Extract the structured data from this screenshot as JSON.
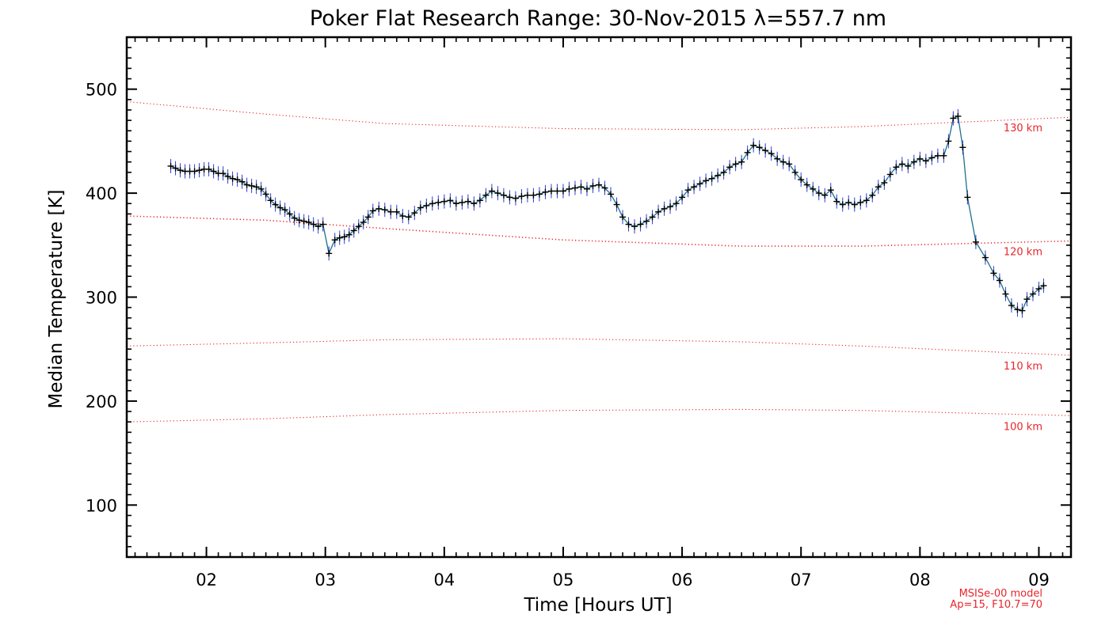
{
  "chart_data": {
    "type": "line",
    "title": "Poker Flat Research Range: 30-Nov-2015 λ=557.7 nm",
    "xlabel": "Time [Hours UT]",
    "ylabel": "Median Temperature [K]",
    "xlim": [
      1.33,
      9.27
    ],
    "ylim": [
      50,
      550
    ],
    "x_ticks": [
      2,
      3,
      4,
      5,
      6,
      7,
      8,
      9
    ],
    "x_tick_labels": [
      "02",
      "03",
      "04",
      "05",
      "06",
      "07",
      "08",
      "09"
    ],
    "y_ticks": [
      100,
      200,
      300,
      400,
      500
    ],
    "y_tick_labels": [
      "100",
      "200",
      "300",
      "400",
      "500"
    ],
    "grid": false,
    "series": [
      {
        "color": "#1f6f8b",
        "marker": "+",
        "points": [
          [
            1.7,
            426
          ],
          [
            1.74,
            424
          ],
          [
            1.78,
            422
          ],
          [
            1.82,
            421
          ],
          [
            1.86,
            421
          ],
          [
            1.9,
            421
          ],
          [
            1.94,
            422
          ],
          [
            1.98,
            423
          ],
          [
            2.02,
            423
          ],
          [
            2.06,
            421
          ],
          [
            2.1,
            419
          ],
          [
            2.14,
            419
          ],
          [
            2.18,
            416
          ],
          [
            2.22,
            414
          ],
          [
            2.26,
            413
          ],
          [
            2.3,
            411
          ],
          [
            2.34,
            408
          ],
          [
            2.38,
            407
          ],
          [
            2.42,
            406
          ],
          [
            2.46,
            404
          ],
          [
            2.5,
            399
          ],
          [
            2.54,
            393
          ],
          [
            2.58,
            389
          ],
          [
            2.62,
            386
          ],
          [
            2.66,
            384
          ],
          [
            2.7,
            380
          ],
          [
            2.74,
            376
          ],
          [
            2.78,
            374
          ],
          [
            2.82,
            373
          ],
          [
            2.86,
            372
          ],
          [
            2.9,
            370
          ],
          [
            2.94,
            368
          ],
          [
            2.98,
            370
          ],
          [
            3.03,
            342
          ],
          [
            3.08,
            355
          ],
          [
            3.12,
            357
          ],
          [
            3.16,
            358
          ],
          [
            3.2,
            360
          ],
          [
            3.24,
            364
          ],
          [
            3.28,
            368
          ],
          [
            3.32,
            372
          ],
          [
            3.36,
            377
          ],
          [
            3.4,
            383
          ],
          [
            3.45,
            385
          ],
          [
            3.5,
            384
          ],
          [
            3.55,
            382
          ],
          [
            3.6,
            382
          ],
          [
            3.65,
            378
          ],
          [
            3.7,
            377
          ],
          [
            3.75,
            381
          ],
          [
            3.8,
            386
          ],
          [
            3.85,
            388
          ],
          [
            3.9,
            390
          ],
          [
            3.95,
            391
          ],
          [
            4.0,
            392
          ],
          [
            4.05,
            393
          ],
          [
            4.1,
            390
          ],
          [
            4.15,
            391
          ],
          [
            4.2,
            392
          ],
          [
            4.25,
            390
          ],
          [
            4.3,
            393
          ],
          [
            4.35,
            398
          ],
          [
            4.4,
            402
          ],
          [
            4.45,
            400
          ],
          [
            4.5,
            398
          ],
          [
            4.55,
            396
          ],
          [
            4.6,
            395
          ],
          [
            4.65,
            397
          ],
          [
            4.7,
            398
          ],
          [
            4.75,
            398
          ],
          [
            4.8,
            399
          ],
          [
            4.85,
            401
          ],
          [
            4.9,
            402
          ],
          [
            4.95,
            402
          ],
          [
            5.0,
            402
          ],
          [
            5.05,
            404
          ],
          [
            5.1,
            405
          ],
          [
            5.15,
            406
          ],
          [
            5.2,
            404
          ],
          [
            5.25,
            407
          ],
          [
            5.3,
            408
          ],
          [
            5.35,
            405
          ],
          [
            5.4,
            399
          ],
          [
            5.45,
            389
          ],
          [
            5.5,
            377
          ],
          [
            5.55,
            370
          ],
          [
            5.6,
            368
          ],
          [
            5.65,
            370
          ],
          [
            5.7,
            373
          ],
          [
            5.75,
            377
          ],
          [
            5.8,
            382
          ],
          [
            5.85,
            385
          ],
          [
            5.9,
            387
          ],
          [
            5.95,
            390
          ],
          [
            6.0,
            396
          ],
          [
            6.05,
            403
          ],
          [
            6.1,
            406
          ],
          [
            6.15,
            409
          ],
          [
            6.2,
            412
          ],
          [
            6.25,
            414
          ],
          [
            6.3,
            417
          ],
          [
            6.35,
            420
          ],
          [
            6.4,
            425
          ],
          [
            6.45,
            428
          ],
          [
            6.5,
            430
          ],
          [
            6.55,
            439
          ],
          [
            6.6,
            446
          ],
          [
            6.65,
            444
          ],
          [
            6.7,
            441
          ],
          [
            6.75,
            438
          ],
          [
            6.8,
            433
          ],
          [
            6.85,
            430
          ],
          [
            6.9,
            428
          ],
          [
            6.95,
            420
          ],
          [
            7.0,
            413
          ],
          [
            7.05,
            408
          ],
          [
            7.1,
            404
          ],
          [
            7.15,
            400
          ],
          [
            7.2,
            398
          ],
          [
            7.25,
            403
          ],
          [
            7.3,
            392
          ],
          [
            7.35,
            389
          ],
          [
            7.4,
            391
          ],
          [
            7.45,
            389
          ],
          [
            7.5,
            391
          ],
          [
            7.55,
            393
          ],
          [
            7.6,
            398
          ],
          [
            7.65,
            406
          ],
          [
            7.7,
            410
          ],
          [
            7.75,
            418
          ],
          [
            7.8,
            425
          ],
          [
            7.85,
            428
          ],
          [
            7.9,
            426
          ],
          [
            7.95,
            430
          ],
          [
            8.0,
            433
          ],
          [
            8.05,
            431
          ],
          [
            8.1,
            434
          ],
          [
            8.15,
            436
          ],
          [
            8.2,
            436
          ],
          [
            8.24,
            450
          ],
          [
            8.28,
            472
          ],
          [
            8.32,
            474
          ],
          [
            8.36,
            444
          ],
          [
            8.4,
            396
          ],
          [
            8.47,
            353
          ],
          [
            8.55,
            338
          ],
          [
            8.62,
            323
          ],
          [
            8.67,
            316
          ],
          [
            8.72,
            303
          ],
          [
            8.77,
            292
          ],
          [
            8.82,
            288
          ],
          [
            8.86,
            287
          ],
          [
            8.9,
            298
          ],
          [
            8.95,
            303
          ],
          [
            9.0,
            308
          ],
          [
            9.04,
            311
          ]
        ]
      }
    ],
    "model_lines": [
      {
        "label": "130 km",
        "color": "#e8252b",
        "points": [
          [
            1.33,
            488
          ],
          [
            2.5,
            476
          ],
          [
            3.5,
            467
          ],
          [
            5.0,
            462
          ],
          [
            6.5,
            461
          ],
          [
            7.5,
            464
          ],
          [
            9.27,
            473
          ]
        ]
      },
      {
        "label": "120 km",
        "color": "#e8252b",
        "points": [
          [
            1.33,
            378
          ],
          [
            2.5,
            374
          ],
          [
            3.5,
            366
          ],
          [
            5.0,
            355
          ],
          [
            6.5,
            349
          ],
          [
            7.5,
            349
          ],
          [
            9.27,
            354
          ]
        ]
      },
      {
        "label": "110 km",
        "color": "#e8252b",
        "points": [
          [
            1.33,
            253
          ],
          [
            2.5,
            256
          ],
          [
            3.5,
            259
          ],
          [
            5.0,
            260
          ],
          [
            6.5,
            257
          ],
          [
            7.5,
            253
          ],
          [
            9.27,
            244
          ]
        ]
      },
      {
        "label": "100 km",
        "color": "#e8252b",
        "points": [
          [
            1.33,
            180
          ],
          [
            2.5,
            183
          ],
          [
            3.5,
            187
          ],
          [
            5.0,
            191
          ],
          [
            6.5,
            192
          ],
          [
            7.5,
            191
          ],
          [
            9.27,
            186
          ]
        ]
      }
    ],
    "model_note": [
      "MSISe-00 model",
      "Ap=15, F10.7=70"
    ]
  }
}
